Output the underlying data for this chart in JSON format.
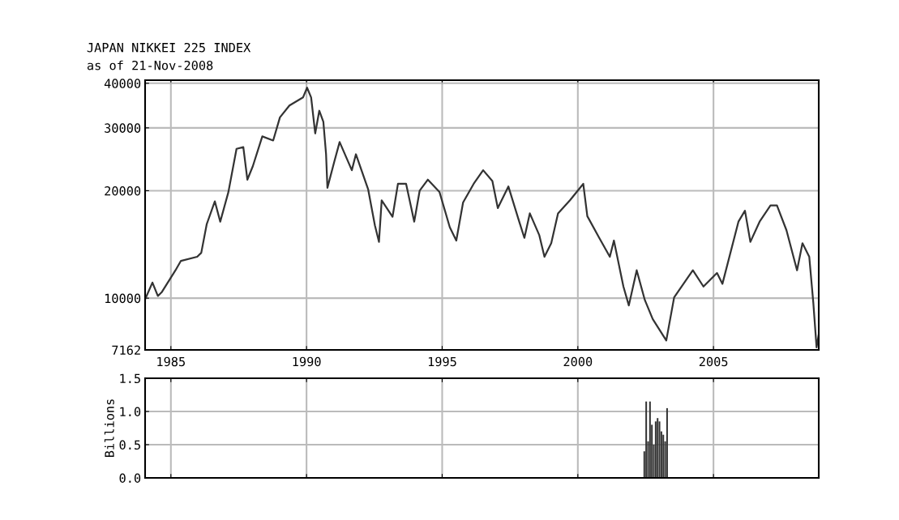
{
  "chart_data": [
    {
      "type": "line",
      "title": "JAPAN NIKKEI 225 INDEX",
      "subtitle": "as of 21-Nov-2008",
      "log": "y",
      "grid": true,
      "marker": "none",
      "line_style": "solid",
      "xlim": [
        1984.05,
        2008.88
      ],
      "xticks": [
        1985,
        1990,
        1995,
        2000,
        2005
      ],
      "ylim": [
        7162,
        40800
      ],
      "yticks": [
        7162,
        10000,
        20000,
        30000,
        40000
      ],
      "series": [
        {
          "color": "#333333",
          "x": [
            1984.07,
            1984.32,
            1984.52,
            1984.67,
            1985.17,
            1985.37,
            1985.97,
            1986.12,
            1986.32,
            1986.62,
            1986.82,
            1987.12,
            1987.42,
            1987.67,
            1987.82,
            1988.02,
            1988.37,
            1988.77,
            1989.02,
            1989.37,
            1989.87,
            1990.02,
            1990.17,
            1990.32,
            1990.47,
            1990.62,
            1990.72,
            1990.77,
            1991.02,
            1991.22,
            1991.67,
            1991.82,
            1992.27,
            1992.52,
            1992.67,
            1992.77,
            1993.17,
            1993.37,
            1993.67,
            1993.97,
            1994.17,
            1994.47,
            1994.9,
            1995.28,
            1995.52,
            1995.77,
            1996.16,
            1996.51,
            1996.85,
            1997.05,
            1997.44,
            1997.84,
            1998.03,
            1998.23,
            1998.58,
            1998.77,
            1999.02,
            1999.27,
            1999.71,
            2000.2,
            2000.35,
            2000.79,
            2001.18,
            2001.33,
            2001.68,
            2001.88,
            2002.17,
            2002.47,
            2002.76,
            2003.26,
            2003.55,
            2004.24,
            2004.63,
            2005.13,
            2005.33,
            2005.92,
            2006.16,
            2006.36,
            2006.7,
            2007.1,
            2007.34,
            2007.69,
            2008.08,
            2008.28,
            2008.53,
            2008.68,
            2008.8,
            2008.88
          ],
          "values": [
            10000,
            11060,
            10140,
            10410,
            11970,
            12720,
            13060,
            13400,
            16100,
            18680,
            16380,
            19830,
            26200,
            26500,
            21480,
            23420,
            28400,
            27650,
            32100,
            34660,
            36500,
            38870,
            36500,
            28940,
            33500,
            31210,
            25300,
            20380,
            24060,
            27380,
            22830,
            25300,
            20200,
            15990,
            14380,
            18800,
            16900,
            20910,
            20910,
            16380,
            20000,
            21480,
            19840,
            15810,
            14500,
            18530,
            20910,
            22830,
            21280,
            17880,
            20560,
            16380,
            14750,
            17280,
            15010,
            13060,
            14250,
            17280,
            18800,
            20910,
            16970,
            14750,
            13060,
            14500,
            10780,
            9540,
            11970,
            9880,
            8740,
            7610,
            10050,
            11970,
            10780,
            11760,
            10970,
            16380,
            17580,
            14380,
            16380,
            18180,
            18180,
            15500,
            11970,
            14250,
            13060,
            9700,
            7280,
            7910
          ]
        }
      ]
    },
    {
      "type": "bar",
      "ylabel": "Billions",
      "grid": true,
      "tick_labels": "y",
      "xlim": [
        1984.05,
        2008.88
      ],
      "xticks": [
        1985,
        1990,
        1995,
        2000,
        2005
      ],
      "ylim": [
        0,
        1.5
      ],
      "yticks": [
        {
          "value": 0,
          "label": "0.0"
        },
        0.5,
        {
          "value": 1,
          "label": "1.0"
        },
        1.5
      ],
      "x": [
        2002.45,
        2002.52,
        2002.59,
        2002.66,
        2002.73,
        2002.8,
        2002.87,
        2002.94,
        2003.01,
        2003.08,
        2003.15,
        2003.22,
        2003.29
      ],
      "values": [
        0.4,
        1.15,
        0.55,
        1.15,
        0.8,
        0.5,
        0.85,
        0.9,
        0.85,
        0.7,
        0.65,
        0.55,
        1.05
      ],
      "color": "#333333"
    }
  ]
}
